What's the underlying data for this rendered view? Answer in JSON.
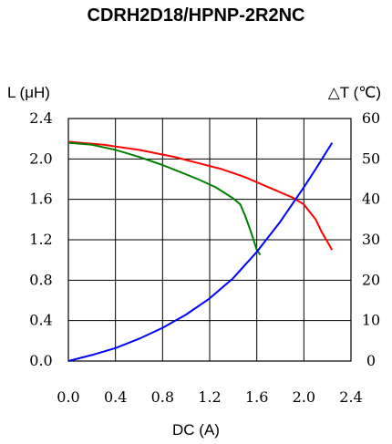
{
  "chart_data": {
    "type": "line",
    "title": "CDRH2D18/HPNP-2R2NC",
    "xlabel": "DC (A)",
    "ylabel_left": "L (μH)",
    "ylabel_right": "△T (℃)",
    "xlim": [
      0,
      2.4
    ],
    "ylim_left": [
      0,
      2.4
    ],
    "ylim_right": [
      0,
      60
    ],
    "grid": true,
    "x_ticks": [
      "0.0",
      "0.4",
      "0.8",
      "1.2",
      "1.6",
      "2.0",
      "2.4"
    ],
    "y_left_ticks": [
      "0.0",
      "0.4",
      "0.8",
      "1.2",
      "1.6",
      "2.0",
      "2.4"
    ],
    "y_right_ticks": [
      "0",
      "10",
      "20",
      "30",
      "40",
      "50",
      "60"
    ],
    "series": [
      {
        "axis": "left",
        "color": "#ff0000",
        "x": [
          0.0,
          0.3,
          0.6,
          0.9,
          1.1,
          1.3,
          1.5,
          1.7,
          1.9,
          2.0,
          2.1,
          2.15,
          2.24
        ],
        "y": [
          2.17,
          2.14,
          2.09,
          2.02,
          1.96,
          1.9,
          1.82,
          1.72,
          1.62,
          1.55,
          1.4,
          1.28,
          1.1
        ]
      },
      {
        "axis": "left",
        "color": "#008000",
        "x": [
          0.0,
          0.2,
          0.4,
          0.6,
          0.8,
          0.95,
          1.1,
          1.25,
          1.4,
          1.46,
          1.5,
          1.55,
          1.6,
          1.63
        ],
        "y": [
          2.16,
          2.14,
          2.09,
          2.02,
          1.94,
          1.87,
          1.8,
          1.72,
          1.61,
          1.55,
          1.44,
          1.28,
          1.1,
          1.05
        ]
      },
      {
        "axis": "right",
        "color": "#0000ff",
        "x": [
          0.0,
          0.2,
          0.4,
          0.6,
          0.8,
          1.0,
          1.2,
          1.4,
          1.6,
          1.8,
          2.0,
          2.1,
          2.24
        ],
        "y": [
          0,
          1.5,
          3.2,
          5.5,
          8.2,
          11.5,
          15.5,
          20.5,
          27,
          34.5,
          43,
          47.5,
          54
        ]
      }
    ]
  }
}
